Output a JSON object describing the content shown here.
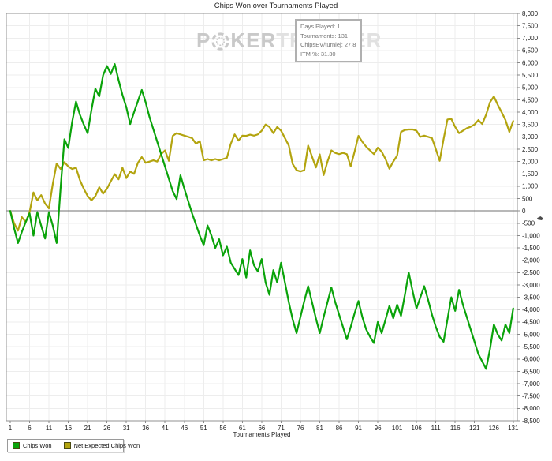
{
  "title": "Chips Won over Tournaments Played",
  "watermark": {
    "p": "P",
    "ker": "KER",
    "tracker": "TRACKER"
  },
  "tooltip": {
    "lines": [
      "Days Played: 1",
      "Tournaments: 131",
      "ChipsEV/turniej: 27.8",
      "ITM %: 31.30"
    ]
  },
  "legend": [
    {
      "label": "Chips Won",
      "color": "#0aa30a"
    },
    {
      "label": "Net Expected Chips Won",
      "color": "#b3a40f"
    }
  ],
  "colors": {
    "grid": "#ededed",
    "plot_border": "#909090",
    "zero_line": "#707070",
    "tick": "#8a8a8a",
    "tick_text": "#1a1a1a"
  },
  "chart_data": {
    "type": "line",
    "title": "Chips Won over Tournaments Played",
    "xlabel": "Tournaments Played",
    "ylabel": "",
    "grid": true,
    "legend_position": "bottom-left",
    "xlim": [
      1,
      131
    ],
    "ylim": [
      -8500,
      8000
    ],
    "y_tick_step": 500,
    "x_ticks": [
      1,
      6,
      11,
      16,
      21,
      26,
      31,
      36,
      41,
      46,
      51,
      56,
      61,
      66,
      71,
      76,
      81,
      86,
      91,
      96,
      101,
      106,
      111,
      116,
      121,
      126,
      131
    ],
    "x": "1..131 (one point per tournament)",
    "series": [
      {
        "name": "Chips Won",
        "color": "#0aa30a",
        "values": [
          0,
          -700,
          -1300,
          -850,
          -450,
          -100,
          -1000,
          -50,
          -600,
          -1120,
          -50,
          -600,
          -1300,
          900,
          2900,
          2550,
          3600,
          4430,
          3900,
          3500,
          3150,
          4100,
          4950,
          4640,
          5500,
          5870,
          5550,
          5950,
          5300,
          4700,
          4200,
          3520,
          4000,
          4450,
          4900,
          4400,
          3800,
          3300,
          2800,
          2300,
          1800,
          1300,
          800,
          480,
          1440,
          900,
          400,
          -100,
          -550,
          -1000,
          -1390,
          -590,
          -1000,
          -1500,
          -1150,
          -1800,
          -1450,
          -2100,
          -2350,
          -2600,
          -1950,
          -2700,
          -1600,
          -2200,
          -2450,
          -1950,
          -2900,
          -3400,
          -2400,
          -2900,
          -2100,
          -2900,
          -3700,
          -4400,
          -4950,
          -4300,
          -3650,
          -3050,
          -3700,
          -4350,
          -4950,
          -4300,
          -3700,
          -3100,
          -3700,
          -4200,
          -4700,
          -5200,
          -4700,
          -4150,
          -3650,
          -4300,
          -4800,
          -5100,
          -5350,
          -4500,
          -4950,
          -4400,
          -3850,
          -4350,
          -3800,
          -4250,
          -3400,
          -2500,
          -3250,
          -3950,
          -3500,
          -3050,
          -3600,
          -4200,
          -4700,
          -5100,
          -5300,
          -4400,
          -3500,
          -4050,
          -3200,
          -3800,
          -4300,
          -4800,
          -5300,
          -5800,
          -6100,
          -6400,
          -5600,
          -4600,
          -5000,
          -5250,
          -4600,
          -4950,
          -3950
        ]
      },
      {
        "name": "Net Expected Chips Won",
        "color": "#b3a40f",
        "values": [
          0,
          -500,
          -800,
          -250,
          -450,
          -50,
          750,
          430,
          640,
          300,
          100,
          1100,
          1920,
          1700,
          1975,
          1800,
          1700,
          1750,
          1250,
          900,
          600,
          430,
          600,
          960,
          700,
          900,
          1200,
          1490,
          1280,
          1750,
          1330,
          1600,
          1500,
          1950,
          2180,
          1950,
          2000,
          2050,
          2000,
          2300,
          2450,
          2030,
          3040,
          3150,
          3100,
          3050,
          3000,
          2950,
          2720,
          2830,
          2050,
          2100,
          2050,
          2100,
          2050,
          2100,
          2150,
          2720,
          3100,
          2850,
          3050,
          3040,
          3090,
          3050,
          3100,
          3250,
          3500,
          3400,
          3150,
          3400,
          3250,
          2950,
          2650,
          1900,
          1650,
          1600,
          1650,
          2650,
          2200,
          1760,
          2290,
          1450,
          2000,
          2450,
          2350,
          2300,
          2350,
          2300,
          1810,
          2400,
          3040,
          2800,
          2600,
          2450,
          2300,
          2560,
          2400,
          2100,
          1710,
          2000,
          2240,
          3200,
          3280,
          3300,
          3300,
          3250,
          3000,
          3050,
          3000,
          2950,
          2500,
          2030,
          2900,
          3700,
          3730,
          3400,
          3150,
          3250,
          3350,
          3410,
          3500,
          3680,
          3520,
          3900,
          4400,
          4640,
          4300,
          4000,
          3680,
          3200,
          3642
        ]
      }
    ]
  }
}
